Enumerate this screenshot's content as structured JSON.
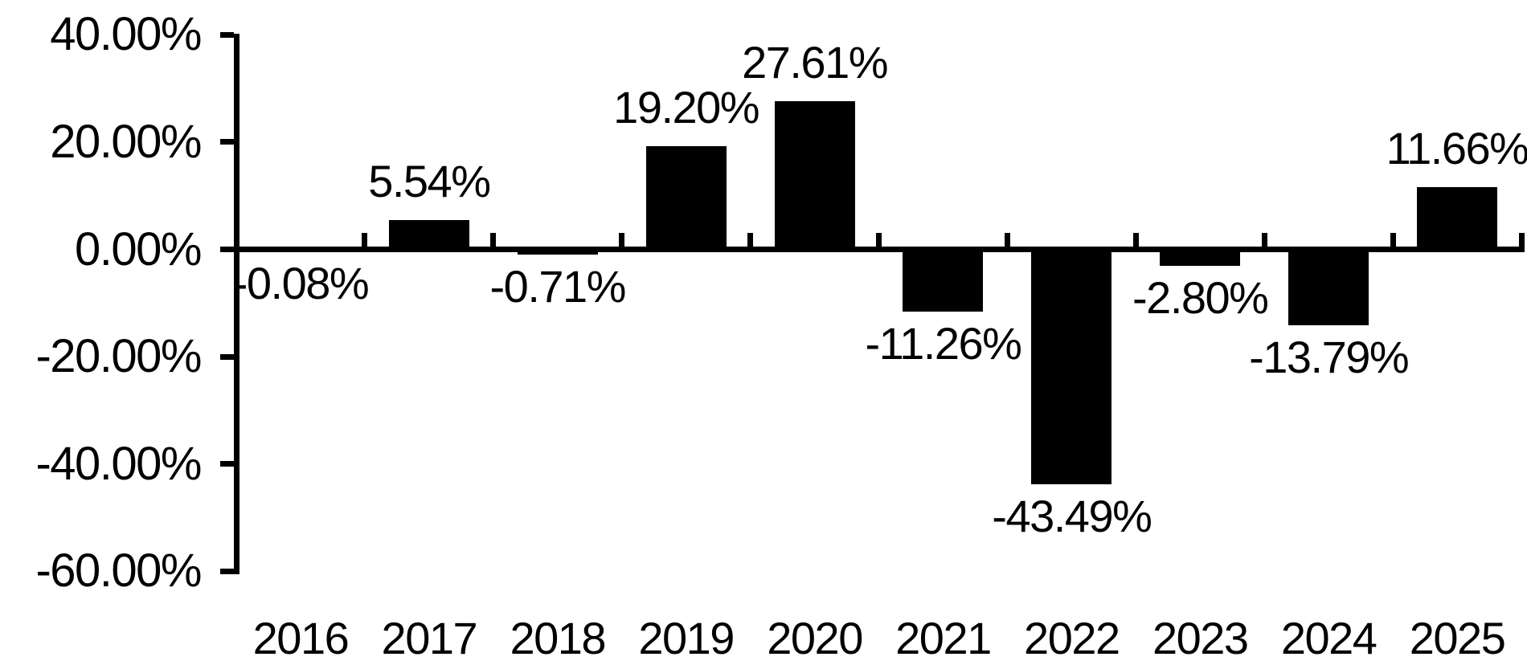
{
  "chart_data": {
    "type": "bar",
    "title": "",
    "categories": [
      "2016",
      "2017",
      "2018",
      "2019",
      "2020",
      "2021",
      "2022",
      "2023",
      "2024",
      "2025"
    ],
    "values": [
      -0.08,
      5.54,
      -0.71,
      19.2,
      27.61,
      -11.26,
      -43.49,
      -2.8,
      -13.79,
      11.66
    ],
    "bar_labels": [
      "-0.08%",
      "5.54%",
      "-0.71%",
      "19.20%",
      "27.61%",
      "-11.26%",
      "-43.49%",
      "-2.80%",
      "-13.79%",
      "11.66%"
    ],
    "xlabel": "",
    "ylabel": "",
    "y_axis": {
      "ylim": [
        -60,
        40
      ],
      "tick_step": 20,
      "ticks": [
        {
          "label": "40.00%",
          "value": 40
        },
        {
          "label": "20.00%",
          "value": 20
        },
        {
          "label": "0.00%",
          "value": 0
        },
        {
          "label": "-20.00%",
          "value": -20
        },
        {
          "label": "-40.00%",
          "value": -40
        },
        {
          "label": "-60.00%",
          "value": -60
        }
      ]
    },
    "grid": false,
    "legend": false,
    "colors": {
      "bar": "#000000",
      "axis": "#000000",
      "text": "#000000",
      "background": "#ffffff"
    }
  }
}
